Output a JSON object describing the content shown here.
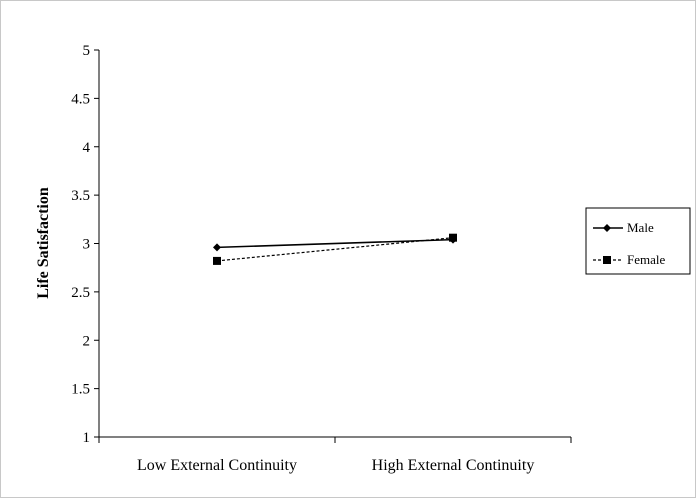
{
  "chart_data": {
    "type": "line",
    "title": "",
    "xlabel": "",
    "ylabel": "Life Satisfaction",
    "categories": [
      "Low External Continuity",
      "High External Continuity"
    ],
    "ylim": [
      1,
      5
    ],
    "yticks": [
      "1",
      "1.5",
      "2",
      "2.5",
      "3",
      "3.5",
      "4",
      "4.5",
      "5"
    ],
    "grid": false,
    "legend": "right",
    "series": [
      {
        "name": "Male",
        "values": [
          2.96,
          3.04
        ],
        "marker": "diamond",
        "line": "solid",
        "color": "#000000"
      },
      {
        "name": "Female",
        "values": [
          2.82,
          3.06
        ],
        "marker": "square",
        "line": "dashed",
        "color": "#000000"
      }
    ]
  }
}
